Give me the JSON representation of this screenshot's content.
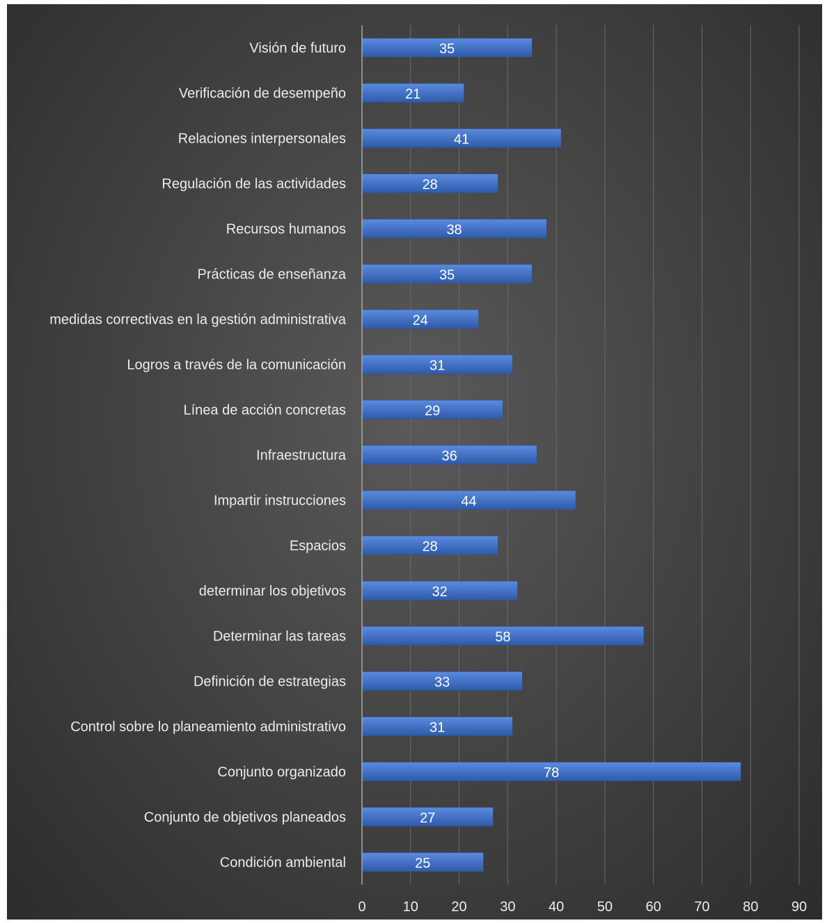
{
  "chart_data": {
    "type": "bar",
    "orientation": "horizontal",
    "title": "",
    "xlabel": "",
    "ylabel": "",
    "categories": [
      "Visión de futuro",
      "Verificación de desempeño",
      "Relaciones interpersonales",
      "Regulación de las actividades",
      "Recursos humanos",
      "Prácticas de enseñanza",
      "medidas correctivas en la gestión administrativa",
      "Logros a través de la comunicación",
      "Línea de acción concretas",
      "Infraestructura",
      "Impartir instrucciones",
      "Espacios",
      "determinar los objetivos",
      "Determinar las tareas",
      "Definición de estrategias",
      "Control sobre lo planeamiento administrativo",
      "Conjunto organizado",
      "Conjunto de objetivos planeados",
      "Condición ambiental"
    ],
    "values": [
      35,
      21,
      41,
      28,
      38,
      35,
      24,
      31,
      29,
      36,
      44,
      28,
      32,
      58,
      33,
      31,
      78,
      27,
      25
    ],
    "xlim": [
      0,
      90
    ],
    "xticks": [
      "0",
      "10",
      "20",
      "30",
      "40",
      "50",
      "60",
      "70",
      "80",
      "90"
    ],
    "grid": true,
    "legend": "none",
    "data_labels": true,
    "bar_color": "#4472C4",
    "background_color": "#404040"
  }
}
